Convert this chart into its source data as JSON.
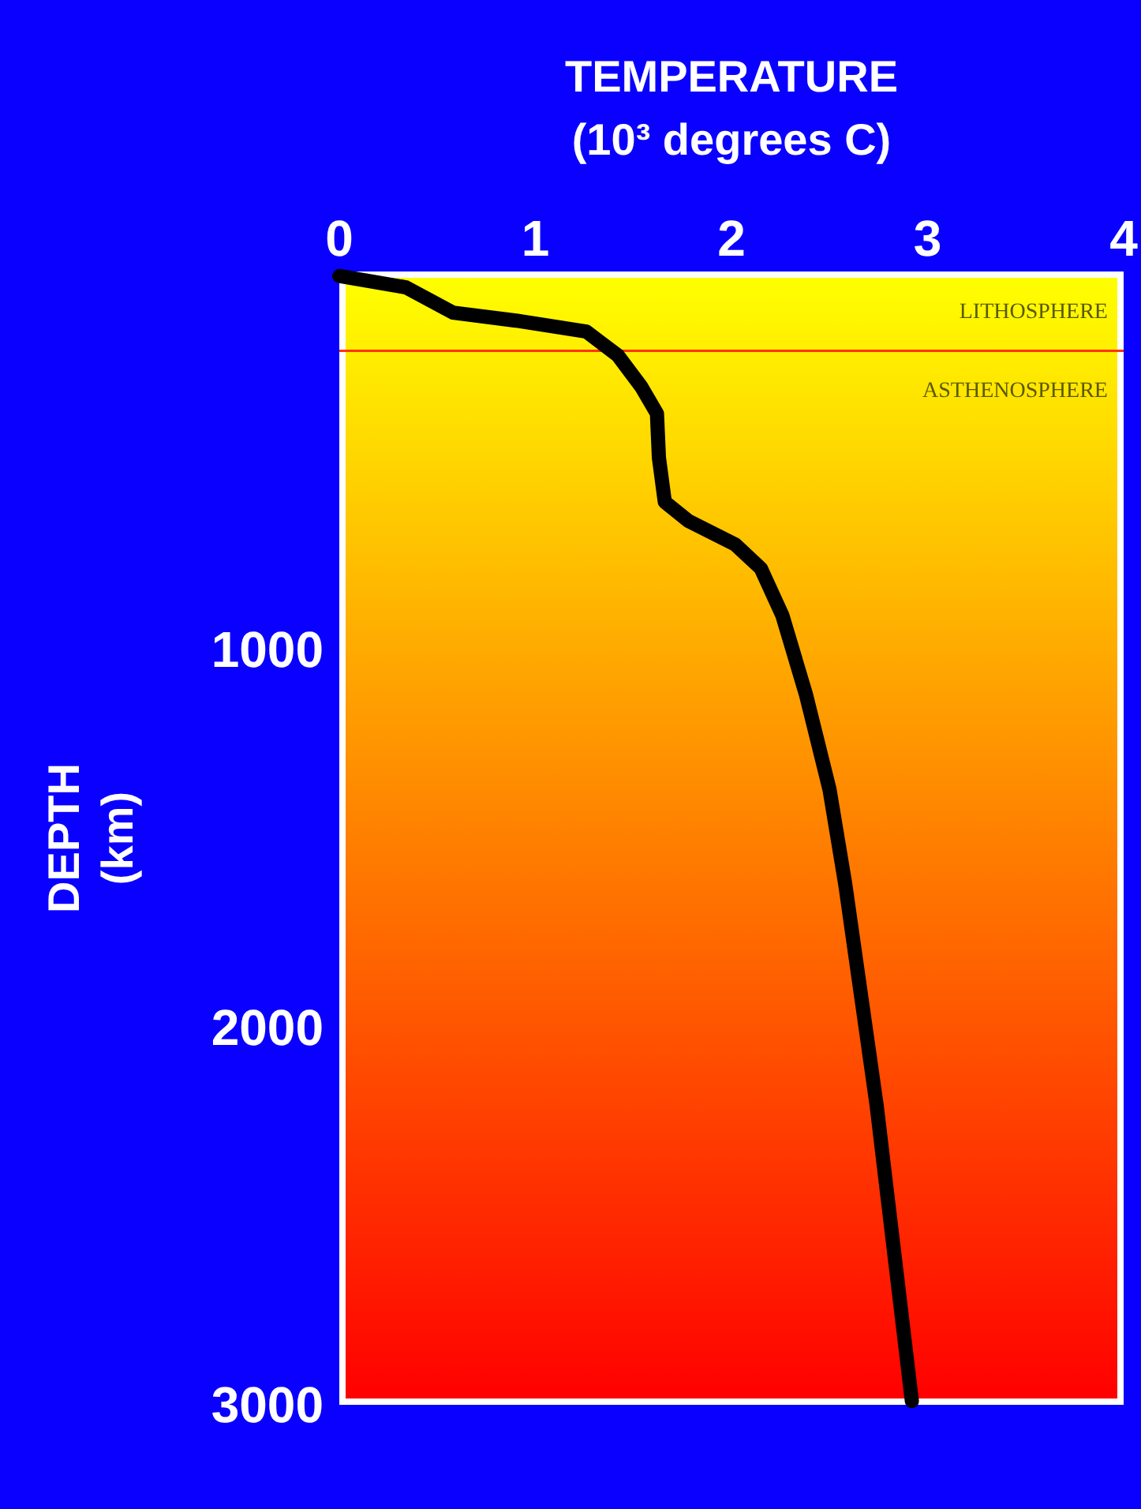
{
  "chart_data": {
    "type": "line",
    "xlabel": "TEMPERATURE (10³ degrees C)",
    "ylabel": "DEPTH (km)",
    "x": [
      0,
      0.34,
      0.58,
      0.9,
      1.26,
      1.42,
      1.54,
      1.62,
      1.63,
      1.66,
      1.78,
      2.02,
      2.15,
      2.26,
      2.38,
      2.5,
      2.58,
      2.74,
      2.92
    ],
    "series": [
      {
        "color": "#000000",
        "values": [
          12,
          42,
          109,
          130,
          159,
          222,
          305,
          376,
          493,
          610,
          660,
          723,
          786,
          911,
          1120,
          1371,
          1621,
          2206,
          2990
        ]
      }
    ],
    "xlim": [
      0,
      4
    ],
    "xticks": [
      0,
      1,
      2,
      3,
      4
    ],
    "ylim": [
      3000,
      0
    ],
    "yticks": [
      1000,
      2000,
      3000
    ],
    "ref_lines": [
      {
        "axis": "y",
        "value": 210,
        "color": "#ff3300"
      }
    ],
    "annotations": [
      "LITHOSPHERE",
      "ASTHENOSPHERE"
    ],
    "grid": false,
    "marker": "none",
    "line_style": "solid"
  }
}
